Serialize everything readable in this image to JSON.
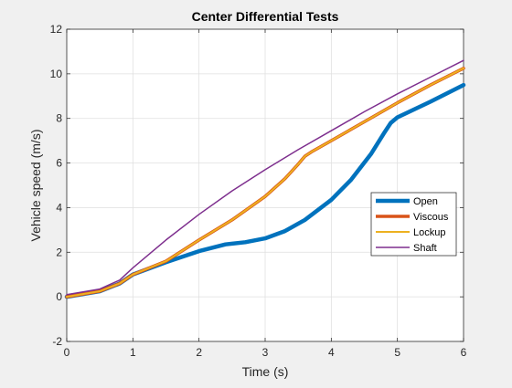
{
  "chart_data": {
    "type": "line",
    "title": "Center Differential Tests",
    "xlabel": "Time (s)",
    "ylabel": "Vehicle speed (m/s)",
    "xlim": [
      0,
      6
    ],
    "ylim": [
      -2,
      12
    ],
    "xticks": [
      "0",
      "1",
      "2",
      "3",
      "4",
      "5",
      "6"
    ],
    "yticks": [
      "-2",
      "0",
      "2",
      "4",
      "6",
      "8",
      "10",
      "12"
    ],
    "grid": true,
    "legend_position": "right",
    "series": [
      {
        "name": "Open",
        "color": "#0072BD",
        "x": [
          0,
          0.5,
          0.8,
          1.0,
          1.5,
          2.0,
          2.4,
          2.7,
          3.0,
          3.3,
          3.6,
          4.0,
          4.3,
          4.6,
          4.8,
          4.9,
          5.0,
          5.5,
          6.0
        ],
        "y": [
          0.0,
          0.25,
          0.6,
          1.0,
          1.55,
          2.05,
          2.35,
          2.45,
          2.62,
          2.95,
          3.45,
          4.35,
          5.25,
          6.4,
          7.35,
          7.8,
          8.05,
          8.75,
          9.5
        ]
      },
      {
        "name": "Viscous",
        "color": "#D95319",
        "x": [
          0,
          0.5,
          0.8,
          1.0,
          1.5,
          2.0,
          2.5,
          3.0,
          3.3,
          3.5,
          3.6,
          3.7,
          4.0,
          4.5,
          5.0,
          5.5,
          6.0
        ],
        "y": [
          0.0,
          0.25,
          0.6,
          1.0,
          1.6,
          2.55,
          3.45,
          4.5,
          5.3,
          5.95,
          6.3,
          6.5,
          7.0,
          7.85,
          8.7,
          9.5,
          10.25
        ]
      },
      {
        "name": "Lockup",
        "color": "#EDB120",
        "x": [
          0,
          0.5,
          0.8,
          1.0,
          1.5,
          2.0,
          2.5,
          3.0,
          3.3,
          3.5,
          3.6,
          3.7,
          4.0,
          4.5,
          5.0,
          5.5,
          6.0
        ],
        "y": [
          0.0,
          0.25,
          0.6,
          1.0,
          1.6,
          2.55,
          3.45,
          4.5,
          5.3,
          5.95,
          6.3,
          6.5,
          7.0,
          7.85,
          8.7,
          9.5,
          10.25
        ]
      },
      {
        "name": "Shaft",
        "color": "#7E2F8E",
        "x": [
          0,
          0.5,
          0.8,
          1.0,
          1.5,
          2.0,
          2.5,
          3.0,
          3.5,
          4.0,
          4.5,
          5.0,
          5.5,
          6.0
        ],
        "y": [
          0.1,
          0.35,
          0.75,
          1.3,
          2.55,
          3.7,
          4.75,
          5.7,
          6.6,
          7.45,
          8.3,
          9.1,
          9.85,
          10.6
        ]
      }
    ]
  }
}
